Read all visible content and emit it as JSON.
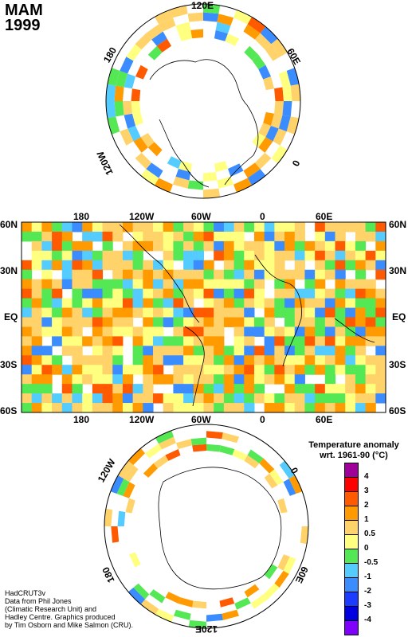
{
  "title": {
    "season": "MAM",
    "year": "1999"
  },
  "north_polar": {
    "labels": {
      "top": "120E",
      "left": "180",
      "right": "60E",
      "lower_left": "120W",
      "lower_right": "0"
    }
  },
  "map": {
    "lat_labels": [
      "60N",
      "30N",
      "EQ",
      "30S",
      "60S"
    ],
    "lon_labels": [
      "180",
      "120W",
      "60W",
      "0",
      "60E"
    ]
  },
  "south_polar": {
    "labels": {
      "top_right": "0",
      "upper_left": "120W",
      "lower_left": "180",
      "lower_right": "60E",
      "bottom": "120E"
    }
  },
  "legend": {
    "title_line1": "Temperature anomaly",
    "title_line2": "wrt. 1961-90  (°C)",
    "bins": [
      {
        "color": "#a0009a",
        "label": "4"
      },
      {
        "color": "#ff0000",
        "label": "3"
      },
      {
        "color": "#ff5a00",
        "label": "2"
      },
      {
        "color": "#ff9a00",
        "label": "1"
      },
      {
        "color": "#ffd26a",
        "label": "0.5"
      },
      {
        "color": "#ffff80",
        "label": "0"
      },
      {
        "color": "#55e855",
        "label": "-0.5"
      },
      {
        "color": "#55ccff",
        "label": "-1"
      },
      {
        "color": "#3a8cff",
        "label": "-2"
      },
      {
        "color": "#1c3cff",
        "label": "-3"
      },
      {
        "color": "#0000e0",
        "label": "-4"
      },
      {
        "color": "#8000ff",
        "label": ""
      }
    ]
  },
  "credit": [
    "HadCRUT3v",
    "Data from Phil Jones",
    "(Climatic Research Unit) and",
    "Hadley Centre.  Graphics produced",
    "by Tim Osborn and Mike Salmon (CRU)."
  ]
}
